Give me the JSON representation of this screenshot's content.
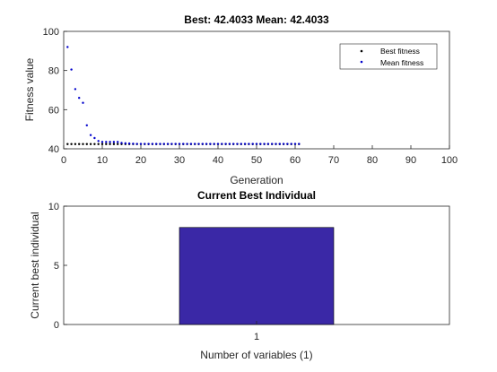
{
  "chart_data": [
    {
      "type": "scatter",
      "title": "Best: 42.4033 Mean: 42.4033",
      "xlabel": "Generation",
      "ylabel": "Fitness value",
      "xlim": [
        0,
        100
      ],
      "ylim": [
        40,
        100
      ],
      "xticks": [
        "0",
        "10",
        "20",
        "30",
        "40",
        "50",
        "60",
        "70",
        "80",
        "90",
        "100"
      ],
      "yticks": [
        "40",
        "60",
        "80",
        "100"
      ],
      "grid": false,
      "legend_position": "top-right",
      "series": [
        {
          "name": "Best fitness",
          "color": "#000000",
          "x": [
            1,
            2,
            3,
            4,
            5,
            6,
            7,
            8,
            9,
            10,
            11,
            12,
            13,
            14,
            15,
            16,
            17,
            18,
            19,
            20,
            21,
            22,
            23,
            24,
            25,
            26,
            27,
            28,
            29,
            30,
            31,
            32,
            33,
            34,
            35,
            36,
            37,
            38,
            39,
            40,
            41,
            42,
            43,
            44,
            45,
            46,
            47,
            48,
            49,
            50,
            51,
            52,
            53,
            54,
            55,
            56,
            57,
            58,
            59,
            60,
            61
          ],
          "y": [
            42.4033,
            42.4033,
            42.4033,
            42.4033,
            42.4033,
            42.4033,
            42.4033,
            42.4033,
            42.4033,
            42.4033,
            42.4033,
            42.4033,
            42.4033,
            42.4033,
            42.4033,
            42.4033,
            42.4033,
            42.4033,
            42.4033,
            42.4033,
            42.4033,
            42.4033,
            42.4033,
            42.4033,
            42.4033,
            42.4033,
            42.4033,
            42.4033,
            42.4033,
            42.4033,
            42.4033,
            42.4033,
            42.4033,
            42.4033,
            42.4033,
            42.4033,
            42.4033,
            42.4033,
            42.4033,
            42.4033,
            42.4033,
            42.4033,
            42.4033,
            42.4033,
            42.4033,
            42.4033,
            42.4033,
            42.4033,
            42.4033,
            42.4033,
            42.4033,
            42.4033,
            42.4033,
            42.4033,
            42.4033,
            42.4033,
            42.4033,
            42.4033,
            42.4033,
            42.4033,
            42.4033
          ]
        },
        {
          "name": "Mean fitness",
          "color": "#0000cc",
          "x": [
            1,
            2,
            3,
            4,
            5,
            6,
            7,
            8,
            9,
            10,
            11,
            12,
            13,
            14,
            15,
            16,
            17,
            18,
            19,
            20,
            21,
            22,
            23,
            24,
            25,
            26,
            27,
            28,
            29,
            30,
            31,
            32,
            33,
            34,
            35,
            36,
            37,
            38,
            39,
            40,
            41,
            42,
            43,
            44,
            45,
            46,
            47,
            48,
            49,
            50,
            51,
            52,
            53,
            54,
            55,
            56,
            57,
            58,
            59,
            60,
            61
          ],
          "y": [
            92,
            80.5,
            70.5,
            66,
            63.5,
            52,
            47,
            45.5,
            44,
            43.5,
            43.5,
            43.5,
            43.5,
            43.5,
            43,
            42.8,
            42.7,
            42.6,
            42.5,
            42.5,
            42.5,
            42.5,
            42.5,
            42.5,
            42.5,
            42.5,
            42.5,
            42.5,
            42.5,
            42.5,
            42.5,
            42.5,
            42.5,
            42.5,
            42.5,
            42.5,
            42.5,
            42.5,
            42.5,
            42.5,
            42.5,
            42.5,
            42.5,
            42.5,
            42.5,
            42.5,
            42.5,
            42.5,
            42.5,
            42.5,
            42.5,
            42.5,
            42.5,
            42.5,
            42.5,
            42.5,
            42.5,
            42.5,
            42.5,
            42.5,
            42.5
          ]
        }
      ]
    },
    {
      "type": "bar",
      "title": "Current Best Individual",
      "xlabel": "Number of variables (1)",
      "ylabel": "Current best individual",
      "categories": [
        "1"
      ],
      "values": [
        8.2
      ],
      "ylim": [
        0,
        10
      ],
      "yticks": [
        "0",
        "5",
        "10"
      ],
      "bar_color": "#3a28a6",
      "grid": false
    }
  ]
}
